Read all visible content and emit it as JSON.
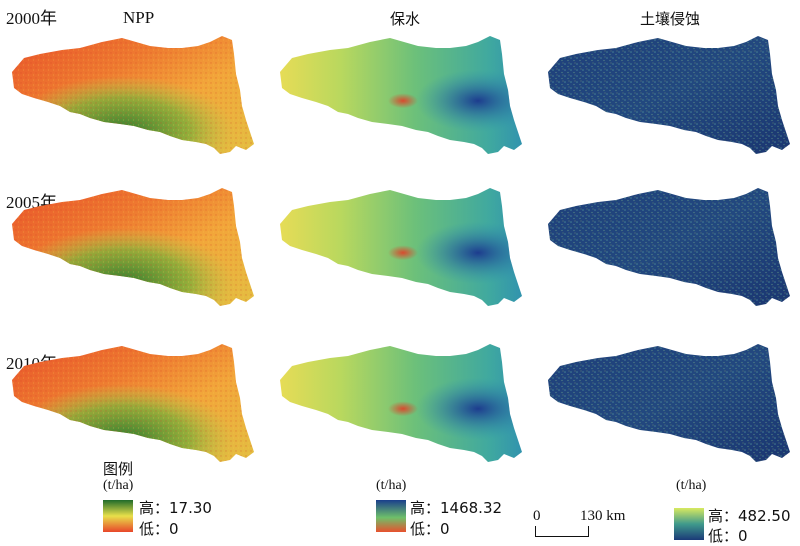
{
  "columns": [
    "NPP",
    "保水",
    "土壤侵蚀"
  ],
  "rows": [
    "2000年",
    "2005年",
    "2010年"
  ],
  "legend": {
    "title": "图例",
    "npp": {
      "unit": "(t/ha)",
      "high_label": "高：17.30",
      "low_label": "低：0",
      "high": 17.3,
      "low": 0
    },
    "water": {
      "unit": "(t/ha)",
      "high_label": "高：1468.32",
      "low_label": "低：0",
      "high": 1468.32,
      "low": 0
    },
    "erosion": {
      "unit": "(t/ha)",
      "high_label": "高：482.50",
      "low_label": "低：0",
      "high": 482.5,
      "low": 0
    }
  },
  "scale": {
    "zero": "0",
    "distance": "130 km"
  },
  "colors": {
    "npp_high": "#1f6b2a",
    "npp_mid": "#e8e04a",
    "npp_low": "#e8462a",
    "water_high": "#1a3f8c",
    "water_mid": "#6ec06a",
    "water_low": "#e8512e",
    "erosion_high": "#d8ea60",
    "erosion_low": "#1b3a78"
  }
}
